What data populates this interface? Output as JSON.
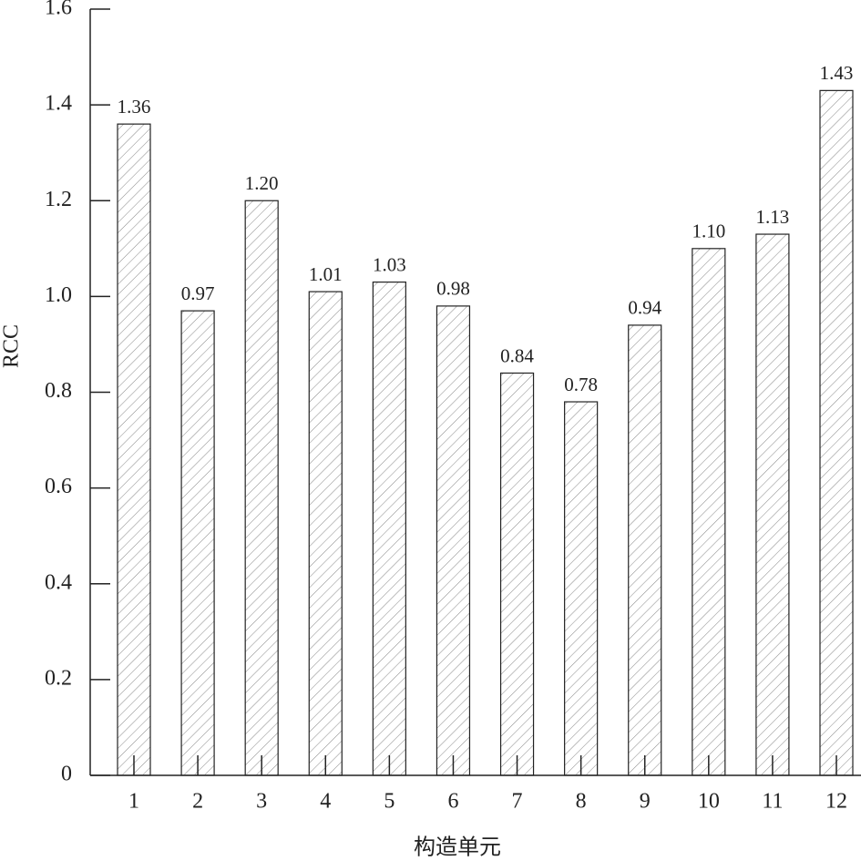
{
  "chart_data": {
    "type": "bar",
    "x_label": "构造单元",
    "y_label": "RCC",
    "categories": [
      "1",
      "2",
      "3",
      "4",
      "5",
      "6",
      "7",
      "8",
      "9",
      "10",
      "11",
      "12"
    ],
    "values": [
      1.36,
      0.97,
      1.2,
      1.01,
      1.03,
      0.98,
      0.84,
      0.78,
      0.94,
      1.1,
      1.13,
      1.43
    ],
    "value_labels": [
      "1.36",
      "0.97",
      "1.20",
      "1.01",
      "1.03",
      "0.98",
      "0.84",
      "0.78",
      "0.94",
      "1.10",
      "1.13",
      "1.43"
    ],
    "color": "#888888",
    "ylim": [
      0,
      1.6
    ],
    "yticks": [
      0,
      0.2,
      0.4,
      0.6,
      0.8,
      {
        "value": 1,
        "label": "1.0"
      },
      1.2,
      1.4,
      1.6
    ]
  }
}
